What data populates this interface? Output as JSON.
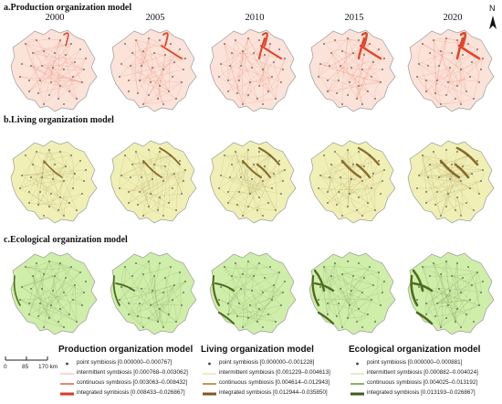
{
  "north_label": "N",
  "years": [
    "2000",
    "2005",
    "2010",
    "2015",
    "2020"
  ],
  "rows": [
    {
      "title": "a.Production organization model",
      "fill": "#fbe3d9",
      "link": "#e0462b"
    },
    {
      "title": "b.Living organization model",
      "fill": "#f0f0b6",
      "link": "#8a6b2a"
    },
    {
      "title": "c.Ecological organization model",
      "fill": "#cfeeaa",
      "link": "#4e6b1e"
    }
  ],
  "legend": [
    {
      "heading": "Production organization model",
      "items": [
        {
          "label": "point symbiosis [0.000000–0.000767]",
          "type": "point"
        },
        {
          "label": "intermittent symbiosis [0.000768–0.003062]",
          "type": "thin",
          "color": "#f2b3a0"
        },
        {
          "label": "continuous symbiosis [0.003063–0.008432]",
          "type": "medium",
          "color": "#e8795c"
        },
        {
          "label": "integrated symbiosis [0.008433–0.026867]",
          "type": "thick",
          "color": "#d63c24"
        }
      ]
    },
    {
      "heading": "Living organization model",
      "items": [
        {
          "label": "point symbiosis [0.000000–0.001228]",
          "type": "point"
        },
        {
          "label": "intermittent symbiosis [0.001229–0.004613]",
          "type": "thin",
          "color": "#e5d28a"
        },
        {
          "label": "continuous symbiosis [0.004614–0.012943]",
          "type": "medium",
          "color": "#b7923d"
        },
        {
          "label": "integrated symbiosis [0.012944–0.035850]",
          "type": "thick",
          "color": "#7a5a22"
        }
      ]
    },
    {
      "heading": "Ecological organization model",
      "items": [
        {
          "label": "point symbiosis [0.000000–0.000881]",
          "type": "point"
        },
        {
          "label": "intermittent symbiosis [0.000882–0.004024]",
          "type": "thin",
          "color": "#bde29a"
        },
        {
          "label": "continuous symbiosis [0.004025–0.013192]",
          "type": "medium",
          "color": "#7fa94a"
        },
        {
          "label": "integrated symbiosis [0.013193–0.026867]",
          "type": "thick",
          "color": "#3f5a1a"
        }
      ]
    }
  ],
  "scale": {
    "ticks": [
      "0",
      "85",
      "170 km"
    ]
  }
}
